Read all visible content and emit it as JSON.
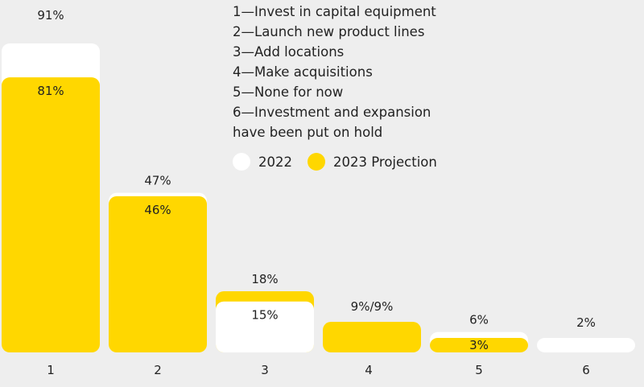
{
  "chart_data": {
    "type": "bar",
    "categories": [
      "1",
      "2",
      "3",
      "4",
      "5",
      "6"
    ],
    "series": [
      {
        "name": "2022",
        "color": "#ffffff",
        "values": [
          91,
          47,
          15,
          9,
          6,
          2
        ]
      },
      {
        "name": "2023 Projection",
        "color": "#ffd700",
        "values": [
          81,
          46,
          18,
          9,
          3,
          0
        ]
      }
    ],
    "value_labels": [
      {
        "category": "1",
        "top": "91%",
        "bottom": "81%"
      },
      {
        "category": "2",
        "top": "47%",
        "bottom": "46%"
      },
      {
        "category": "3",
        "top": "18%",
        "bottom": "15%"
      },
      {
        "category": "4",
        "top": "9%/9%",
        "bottom": ""
      },
      {
        "category": "5",
        "top": "6%",
        "bottom": "3%"
      },
      {
        "category": "6",
        "top": "2%",
        "bottom": ""
      }
    ],
    "category_descriptions": [
      "1—Invest in capital equipment",
      "2—Launch new product lines",
      "3—Add locations",
      "4—Make acquisitions",
      "5—None for now",
      "6—Investment and expansion",
      "have been put on hold"
    ],
    "ylim": [
      0,
      100
    ],
    "grid": false,
    "legend_placement": "top-center"
  }
}
